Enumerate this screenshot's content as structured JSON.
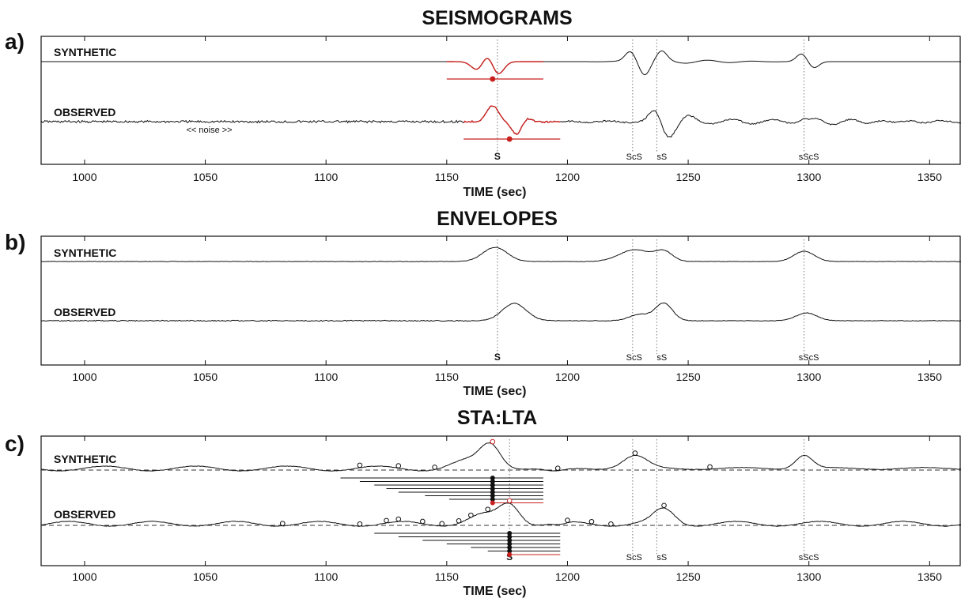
{
  "chart_data": [
    {
      "type": "line",
      "panel_label": "a)",
      "title": "SEISMOGRAMS",
      "xlabel": "TIME (sec)",
      "xlim": [
        982,
        1363
      ],
      "xticks": [
        1000,
        1050,
        1100,
        1150,
        1200,
        1250,
        1300,
        1350
      ],
      "traces": [
        {
          "name": "SYNTHETIC",
          "kind": "synthetic-seismogram",
          "window": {
            "start": 1150,
            "end": 1190,
            "pick": 1169,
            "color": "#c8201e"
          }
        },
        {
          "name": "OBSERVED",
          "kind": "observed-seismogram",
          "window": {
            "start": 1157,
            "end": 1197,
            "pick": 1176,
            "color": "#c8201e"
          },
          "annotation": "<< noise >>"
        }
      ],
      "phases": [
        {
          "name": "S",
          "time": 1171
        },
        {
          "name": "ScS",
          "time": 1227
        },
        {
          "name": "sS",
          "time": 1237
        },
        {
          "name": "sScS",
          "time": 1298
        }
      ]
    },
    {
      "type": "line",
      "panel_label": "b)",
      "title": "ENVELOPES",
      "xlabel": "TIME (sec)",
      "xlim": [
        982,
        1363
      ],
      "xticks": [
        1000,
        1050,
        1100,
        1150,
        1200,
        1250,
        1300,
        1350
      ],
      "traces": [
        {
          "name": "SYNTHETIC",
          "kind": "synthetic-envelope"
        },
        {
          "name": "OBSERVED",
          "kind": "observed-envelope"
        }
      ],
      "phases": [
        {
          "name": "S",
          "time": 1171
        },
        {
          "name": "ScS",
          "time": 1227
        },
        {
          "name": "sS",
          "time": 1237
        },
        {
          "name": "sScS",
          "time": 1298
        }
      ]
    },
    {
      "type": "line",
      "panel_label": "c)",
      "title": "STA:LTA",
      "xlabel": "TIME (sec)",
      "xlim": [
        982,
        1363
      ],
      "xticks": [
        1000,
        1050,
        1100,
        1150,
        1200,
        1250,
        1300,
        1350
      ],
      "traces": [
        {
          "name": "SYNTHETIC",
          "kind": "synthetic-stalta",
          "peak": 1169,
          "window_end": 1190,
          "candidates": [
            1106,
            1114,
            1120,
            1125,
            1130,
            1141,
            1151,
            1169
          ],
          "maxima": [
            1114,
            1130,
            1145,
            1169,
            1196,
            1228,
            1259
          ]
        },
        {
          "name": "OBSERVED",
          "kind": "observed-stalta",
          "peak": 1176,
          "window_end": 1197,
          "candidates": [
            1120,
            1130,
            1140,
            1150,
            1160,
            1167,
            1176
          ],
          "maxima": [
            1082,
            1114,
            1125,
            1130,
            1140,
            1148,
            1155,
            1160,
            1167,
            1176,
            1200,
            1210,
            1218,
            1240
          ]
        }
      ],
      "phases": [
        {
          "name": "S",
          "time": 1176
        },
        {
          "name": "ScS",
          "time": 1227
        },
        {
          "name": "sS",
          "time": 1237
        },
        {
          "name": "sScS",
          "time": 1298
        }
      ]
    }
  ]
}
